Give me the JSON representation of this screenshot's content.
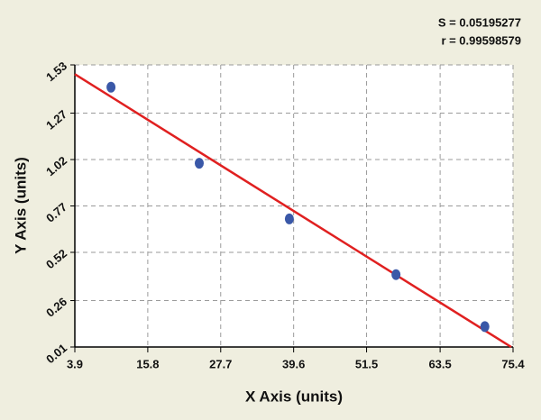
{
  "chart_data": {
    "type": "scatter",
    "annotations": [
      "S = 0.05195277",
      "r = 0.99598579"
    ],
    "x_label": "X Axis (units)",
    "y_label": "Y Axis (units)",
    "xlim": [
      3.9,
      75.4
    ],
    "xticks": [
      3.9,
      15.8,
      27.7,
      39.6,
      51.5,
      63.5,
      75.4
    ],
    "ylim": [
      0.01,
      1.53
    ],
    "yticks": [
      0.01,
      0.26,
      0.52,
      0.77,
      1.02,
      1.27,
      1.53
    ],
    "grid": true,
    "series": [
      {
        "color": "#3a58a8",
        "x": [
          9.8,
          24.2,
          38.9,
          56.3,
          70.8
        ],
        "values": [
          1.41,
          1.0,
          0.7,
          0.4,
          0.12
        ]
      },
      {
        "color": "#e02020",
        "style": "line",
        "x": [
          3.9,
          75.1
        ],
        "values": [
          1.48,
          0.01
        ]
      }
    ]
  }
}
